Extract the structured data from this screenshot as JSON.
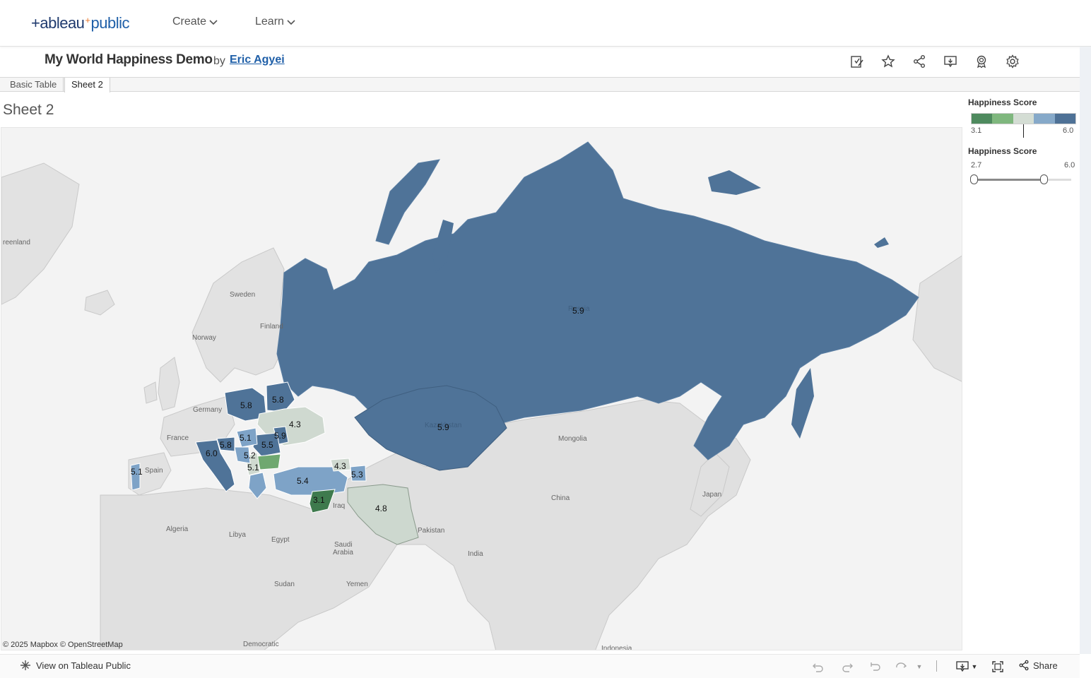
{
  "topnav": {
    "logo_part1": "+ableau",
    "logo_part2": "public",
    "logo_spark": "+",
    "items": [
      {
        "label": "Create"
      },
      {
        "label": "Learn"
      }
    ]
  },
  "workbook": {
    "title": "My World Happiness Demo",
    "by": "by",
    "author": "Eric Agyei",
    "header_icons": [
      "edit-icon",
      "star-icon",
      "share-icon",
      "comment-icon",
      "badge-icon",
      "gear-icon"
    ]
  },
  "tabs": [
    {
      "label": "Basic Table",
      "active": false
    },
    {
      "label": "Sheet 2",
      "active": true
    }
  ],
  "sheet": {
    "title": "Sheet 2",
    "attribution": "© 2025 Mapbox  © OpenStreetMap"
  },
  "map": {
    "place_labels": {
      "greenland": "reenland",
      "sweden": "Sweden",
      "finland": "Finland",
      "norway": "Norway",
      "germany": "Germany",
      "france": "France",
      "spain": "Spain",
      "mongolia": "Mongolia",
      "china": "China",
      "japan": "Japan",
      "algeria": "Algeria",
      "libya": "Libya",
      "egypt": "Egypt",
      "iraq": "Iraq",
      "saudi": "Saudi",
      "arabia": "Arabia",
      "pakistan": "Pakistan",
      "india": "India",
      "sudan": "Sudan",
      "yemen": "Yemen",
      "democratic": "Democratic",
      "indonesia": "Indonesia",
      "russia_ghost": "Russia",
      "kazakhstan_ghost": "Kazakhstan"
    },
    "score_labels": {
      "russia": "5.9",
      "kazakhstan": "5.9",
      "poland": "5.8",
      "belarus": "5.8",
      "ukraine": "4.3",
      "moldova": "5.9",
      "hungary": "5.1",
      "romania": "5.5",
      "slovenia": "5.8",
      "italy": "6.0",
      "bosnia": "5.2",
      "serbia": "5.1",
      "portugal": "5.1",
      "georgia": "4.3",
      "azerbaijan": "5.3",
      "turkey": "5.4",
      "syria": "3.1",
      "iran": "4.8"
    }
  },
  "legend": {
    "color_title": "Happiness Score",
    "color_min": "3.1",
    "color_max": "6.0",
    "ramp_colors": [
      "#4e8a5e",
      "#7fb77e",
      "#d4ddd4",
      "#86a9c9",
      "#4e7196"
    ],
    "filter_title": "Happiness Score",
    "filter_min": "2.7",
    "filter_max": "6.0"
  },
  "colors": {
    "dark_blue": "#4e7196",
    "mid_blue": "#7ea3c7",
    "light_gray_green": "#cdd8cf",
    "green": "#6fa870",
    "dark_green": "#3e7a4d",
    "land": "#dcdcdc",
    "water": "#f4f4f4"
  },
  "footer": {
    "view_on": "View on Tableau Public",
    "share": "Share"
  }
}
